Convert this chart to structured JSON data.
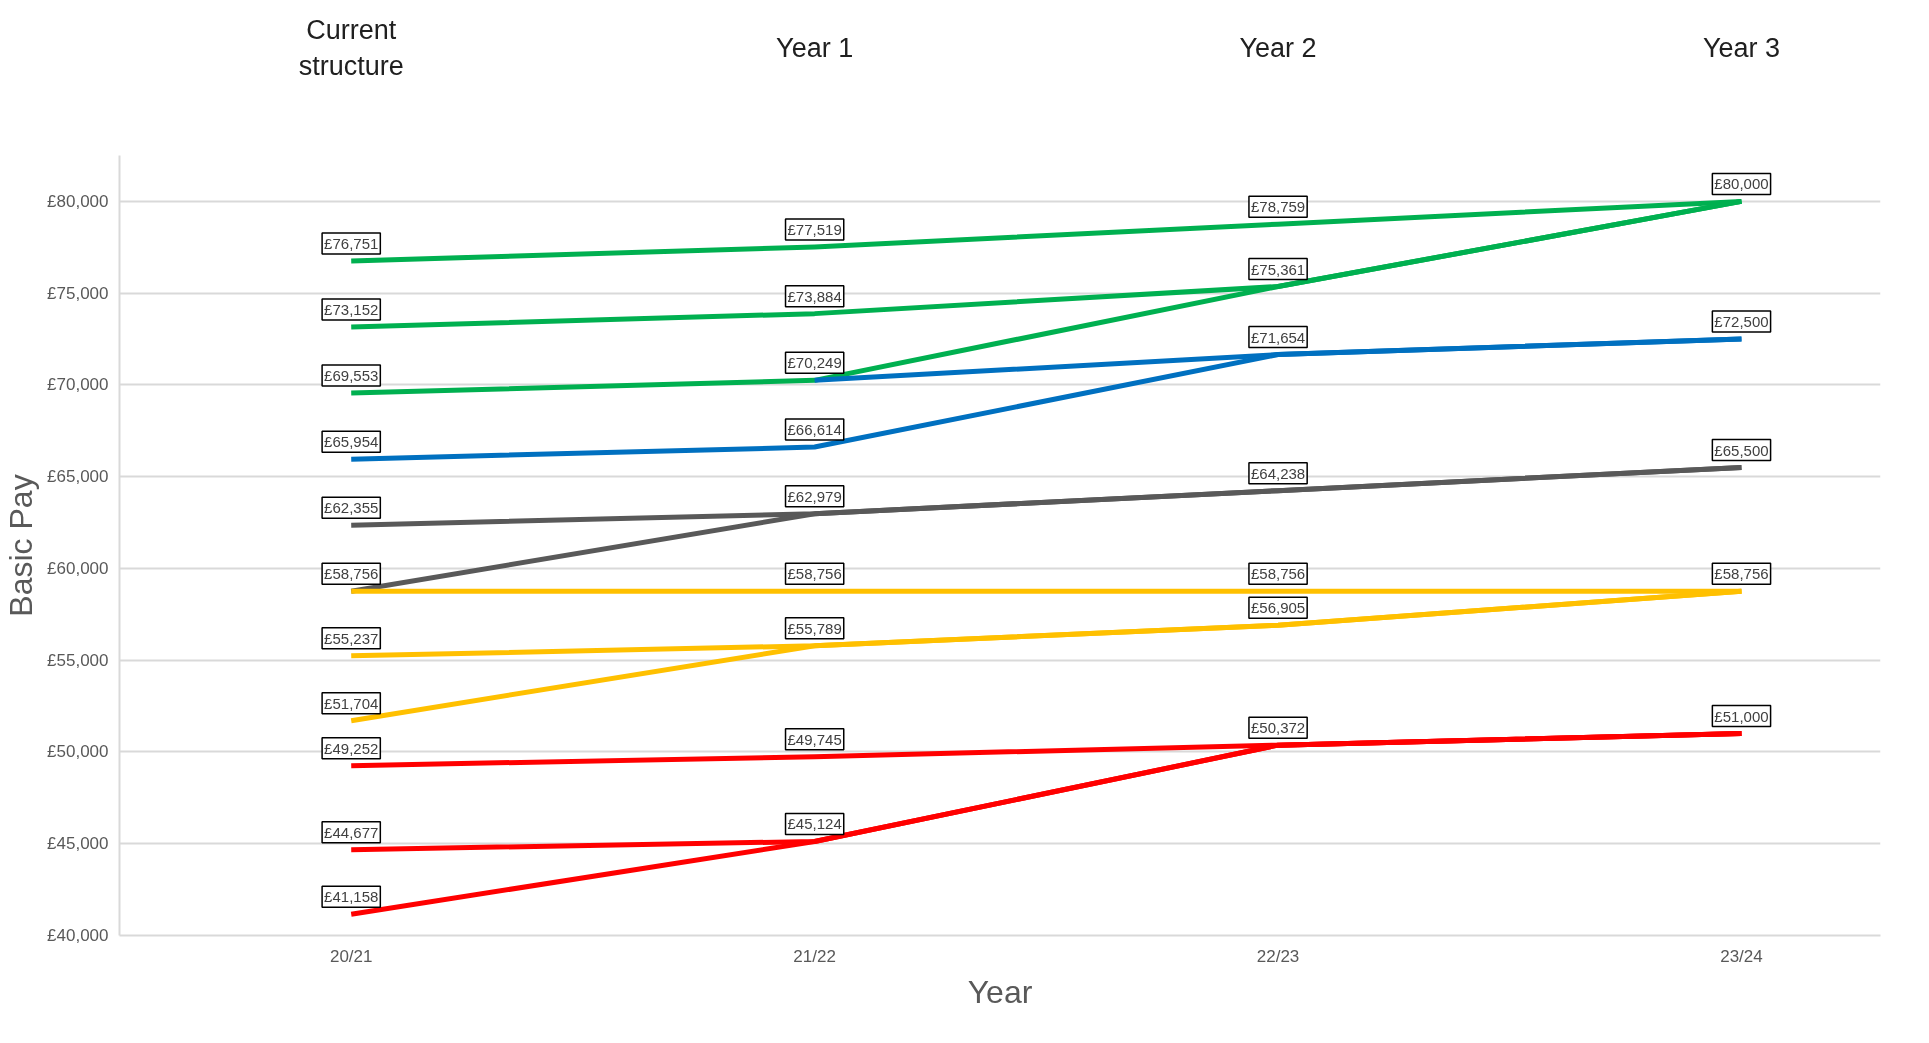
{
  "chart_data": {
    "type": "line",
    "xlabel": "Year",
    "ylabel": "Basic Pay",
    "categories": [
      "20/21",
      "21/22",
      "22/23",
      "23/24"
    ],
    "ylim": [
      40000,
      82500
    ],
    "yticks": [
      {
        "value": 40000,
        "label": "£40,000"
      },
      {
        "value": 45000,
        "label": "£45,000"
      },
      {
        "value": 50000,
        "label": "£50,000"
      },
      {
        "value": 55000,
        "label": "£55,000"
      },
      {
        "value": 60000,
        "label": "£60,000"
      },
      {
        "value": 65000,
        "label": "£65,000"
      },
      {
        "value": 70000,
        "label": "£70,000"
      },
      {
        "value": 75000,
        "label": "£75,000"
      },
      {
        "value": 80000,
        "label": "£80,000"
      }
    ],
    "grid": "y",
    "marker": "none",
    "line_style": "solid",
    "annotations": [
      "Current\nstructure",
      "Year 1",
      "Year 2",
      "Year 3"
    ],
    "series": [
      {
        "color": "#00b050",
        "values": [
          76751,
          77519,
          78759,
          80000
        ],
        "value_labels": [
          "£76,751",
          "£77,519",
          "£78,759",
          "£80,000"
        ]
      },
      {
        "color": "#00b050",
        "values": [
          73152,
          73884,
          75361,
          80000
        ],
        "value_labels": [
          "£73,152",
          "£73,884",
          "£75,361",
          null
        ]
      },
      {
        "color": "#00b050",
        "values": [
          69553,
          70249,
          75361,
          80000
        ],
        "value_labels": [
          "£69,553",
          "£70,249",
          null,
          null
        ]
      },
      {
        "color": "#0070c0",
        "values": [
          null,
          70249,
          71654,
          72500
        ],
        "value_labels": [
          null,
          null,
          "£71,654",
          "£72,500"
        ]
      },
      {
        "color": "#0070c0",
        "values": [
          65954,
          66614,
          71654,
          72500
        ],
        "value_labels": [
          "£65,954",
          "£66,614",
          null,
          null
        ]
      },
      {
        "color": "#595959",
        "values": [
          62355,
          62979,
          64238,
          65500
        ],
        "value_labels": [
          "£62,355",
          "£62,979",
          "£64,238",
          "£65,500"
        ]
      },
      {
        "color": "#595959",
        "values": [
          58756,
          62979,
          64238,
          65500
        ],
        "value_labels": [
          "£58,756",
          null,
          null,
          null
        ]
      },
      {
        "color": "#ffc000",
        "values": [
          58756,
          58756,
          58756,
          58756
        ],
        "value_labels": [
          null,
          "£58,756",
          "£58,756",
          "£58,756"
        ]
      },
      {
        "color": "#ffc000",
        "values": [
          55237,
          55789,
          56905,
          58756
        ],
        "value_labels": [
          "£55,237",
          "£55,789",
          "£56,905",
          null
        ]
      },
      {
        "color": "#ffc000",
        "values": [
          51704,
          55789,
          56905,
          58756
        ],
        "value_labels": [
          "£51,704",
          null,
          null,
          null
        ]
      },
      {
        "color": "#ff0000",
        "values": [
          49252,
          49745,
          50372,
          51000
        ],
        "value_labels": [
          "£49,252",
          "£49,745",
          "£50,372",
          "£51,000"
        ]
      },
      {
        "color": "#ff0000",
        "values": [
          44677,
          45124,
          50372,
          51000
        ],
        "value_labels": [
          "£44,677",
          "£45,124",
          null,
          null
        ]
      },
      {
        "color": "#ff0000",
        "values": [
          41158,
          45124,
          50372,
          51000
        ],
        "value_labels": [
          "£41,158",
          null,
          null,
          null
        ]
      }
    ]
  }
}
